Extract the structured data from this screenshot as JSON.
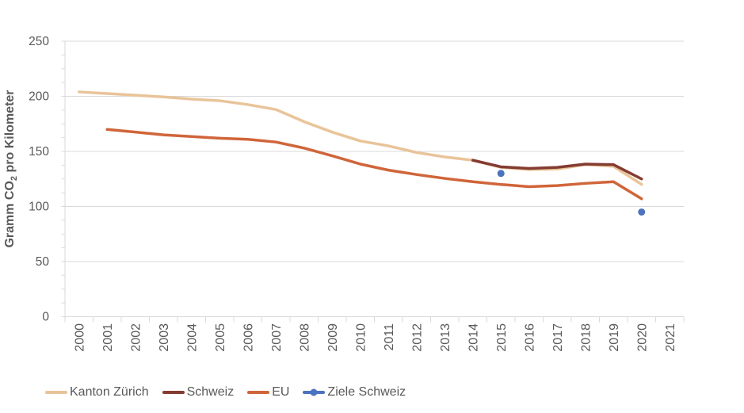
{
  "chart_data": {
    "type": "line",
    "title": "",
    "xlabel": "",
    "ylabel": "Gramm CO2 pro Kilometer",
    "ylabel_parts": {
      "pre": "Gramm CO",
      "sub": "2",
      "post": " pro Kilometer"
    },
    "x_categories": [
      "2000",
      "2001",
      "2002",
      "2003",
      "2004",
      "2005",
      "2006",
      "2007",
      "2008",
      "2009",
      "2010",
      "2011",
      "2012",
      "2013",
      "2014",
      "2015",
      "2016",
      "2017",
      "2018",
      "2019",
      "2020",
      "2021"
    ],
    "ylim": [
      0,
      250
    ],
    "yticks": [
      0,
      50,
      100,
      150,
      200,
      250
    ],
    "ytick_minor_interval": 12.5,
    "grid": "horizontal",
    "legend_position": "bottom",
    "axis_color": "#d9d9d9",
    "text_color": "#595959",
    "series": [
      {
        "name": "Kanton Zürich",
        "color": "#e9c499",
        "years": [
          2000,
          2001,
          2002,
          2003,
          2004,
          2005,
          2006,
          2007,
          2008,
          2009,
          2010,
          2011,
          2012,
          2013,
          2014,
          2015,
          2016,
          2017,
          2018,
          2019,
          2020
        ],
        "values": [
          204,
          202.5,
          201,
          199.5,
          197.5,
          196,
          192.5,
          188,
          177,
          167.5,
          159.5,
          155,
          149,
          145,
          142,
          135.5,
          133.5,
          134,
          138,
          136.5,
          120
        ]
      },
      {
        "name": "Schweiz",
        "color": "#843c32",
        "years": [
          2014,
          2015,
          2016,
          2017,
          2018,
          2019,
          2020
        ],
        "values": [
          142,
          136,
          134.5,
          135.5,
          138.5,
          138,
          125
        ]
      },
      {
        "name": "EU",
        "color": "#d0653a",
        "years": [
          2001,
          2002,
          2003,
          2004,
          2005,
          2006,
          2007,
          2008,
          2009,
          2010,
          2011,
          2012,
          2013,
          2014,
          2015,
          2016,
          2017,
          2018,
          2019,
          2020
        ],
        "values": [
          170,
          167.5,
          165,
          163.5,
          162,
          161,
          158.5,
          153,
          146,
          138.5,
          133,
          129,
          125.5,
          122.5,
          120,
          118,
          119,
          121,
          122.5,
          107
        ]
      },
      {
        "name": "Ziele Schweiz",
        "color": "#4c73c0",
        "marker_only": true,
        "years": [
          2015,
          2020
        ],
        "values": [
          130,
          95
        ]
      }
    ]
  }
}
